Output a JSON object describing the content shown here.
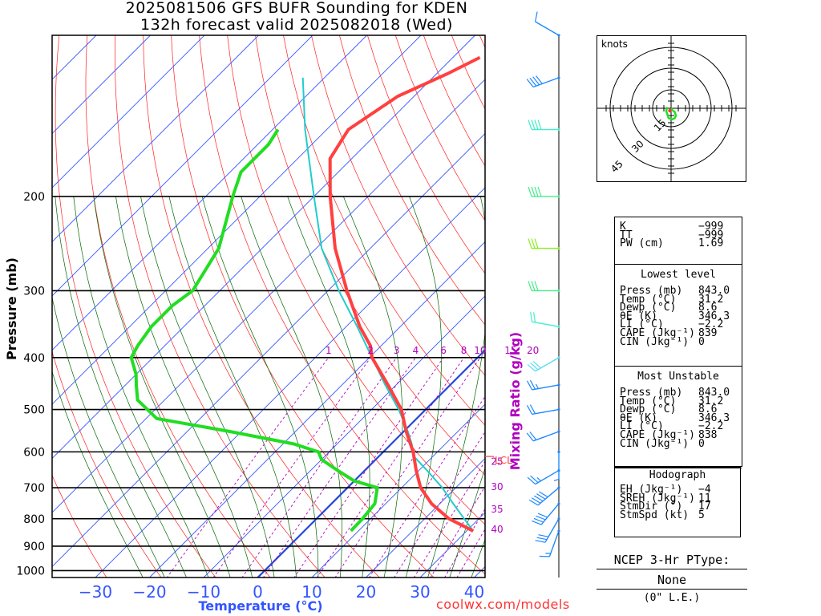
{
  "header": {
    "line1": "2025081506 GFS BUFR Sounding for KDEN",
    "line2": "132h forecast valid 2025082018 (Wed)"
  },
  "chart_data": {
    "type": "line",
    "title": "2025081506 GFS BUFR Sounding for KDEN",
    "subtitle": "132h forecast valid 2025082018 (Wed)",
    "xlabel": "Temperature (°C)",
    "ylabel": "Pressure (mb)",
    "xlim": [
      -38,
      42
    ],
    "ylim": [
      1030,
      100
    ],
    "y_scale": "log",
    "skew": "temperature isotherms skewed 45°",
    "x_ticks": [
      -30,
      -20,
      -10,
      0,
      10,
      20,
      30,
      40
    ],
    "y_ticks": [
      1000,
      900,
      800,
      700,
      600,
      500,
      400,
      300,
      200
    ],
    "mixing_ratio_label": "Mixing Ratio (g/kg)",
    "mixing_ratios": [
      1,
      2,
      3,
      4,
      6,
      8,
      10,
      15,
      20,
      25,
      30,
      35,
      40
    ],
    "lcl_label": "LCL",
    "lcl_pressure": 612,
    "series": [
      {
        "name": "Temperature",
        "color": "#ff4040",
        "p": [
          843,
          800,
          750,
          700,
          650,
          600,
          550,
          500,
          450,
          400,
          380,
          350,
          300,
          250,
          200,
          170,
          150,
          130,
          118,
          110
        ],
        "t": [
          31.2,
          24.5,
          18.5,
          13.5,
          9.5,
          5.5,
          0.5,
          -4.5,
          -11.5,
          -19.5,
          -22,
          -27.5,
          -36.5,
          -46.5,
          -57,
          -64,
          -66,
          -63,
          -58,
          -55
        ]
      },
      {
        "name": "Dewpoint",
        "color": "#22dd22",
        "p": [
          843,
          800,
          750,
          700,
          680,
          650,
          620,
          600,
          580,
          550,
          520,
          480,
          450,
          430,
          400,
          380,
          350,
          320,
          300,
          250,
          200,
          180,
          170,
          160,
          150
        ],
        "t": [
          8.6,
          8.5,
          8.0,
          5.5,
          0,
          -5,
          -10,
          -12,
          -18,
          -32,
          -48,
          -55,
          -58,
          -60,
          -64,
          -65,
          -66,
          -66,
          -65,
          -68,
          -75,
          -78,
          -78,
          -78,
          -79
        ]
      },
      {
        "name": "Parcel",
        "color": "#22cccc",
        "p": [
          843,
          800,
          750,
          700,
          650,
          612,
          580,
          550,
          500,
          450,
          400,
          350,
          300,
          250,
          200,
          150,
          120
        ],
        "t": [
          31.2,
          27.3,
          22.5,
          17.5,
          11.5,
          6.5,
          3.8,
          0.8,
          -5,
          -12,
          -19.5,
          -28,
          -38,
          -49,
          -60,
          -74,
          -84
        ]
      }
    ]
  },
  "hodograph": {
    "units": "knots",
    "rings": [
      "15",
      "30",
      "45"
    ],
    "points": [
      [
        0,
        0
      ],
      [
        1,
        1.5
      ],
      [
        3,
        3
      ],
      [
        4,
        6
      ],
      [
        3,
        8
      ],
      [
        1,
        9
      ],
      [
        -2,
        8
      ],
      [
        -3,
        5
      ],
      [
        -4,
        2
      ],
      [
        -3,
        -1
      ]
    ]
  },
  "winds": {
    "pressures": [
      843,
      800,
      750,
      700,
      650,
      600,
      550,
      500,
      450,
      400,
      350,
      300,
      250,
      200,
      150,
      120,
      100
    ],
    "speeds_kt": [
      15,
      30,
      40,
      50,
      25,
      5,
      20,
      20,
      25,
      30,
      20,
      30,
      30,
      40,
      40,
      40,
      10
    ],
    "dirs_deg": [
      200,
      210,
      220,
      230,
      240,
      180,
      250,
      260,
      260,
      240,
      280,
      270,
      270,
      270,
      270,
      250,
      300
    ],
    "colors": [
      "#1e88ff",
      "#1e88ff",
      "#1e88ff",
      "#1e88ff",
      "#1e88ff",
      "#1e88ff",
      "#1e88ff",
      "#1e88ff",
      "#1e88ff",
      "#55ddee",
      "#44eecc",
      "#44ee88",
      "#88ee22",
      "#44ee88",
      "#44eecc",
      "#1e88ff",
      "#1e88ff"
    ]
  },
  "indices": {
    "k": {
      "label": "K",
      "value": "−999"
    },
    "tt": {
      "label": "TT",
      "value": "−999"
    },
    "pw": {
      "label": "PW (cm)",
      "value": "1.69"
    }
  },
  "lowest": {
    "title": "Lowest level",
    "rows": [
      {
        "label": "Press (mb)",
        "value": "843.0"
      },
      {
        "label": "Temp (°C)",
        "value": "31.2"
      },
      {
        "label": "Dewp (°C)",
        "value": "8.6"
      },
      {
        "label": "θE (K)",
        "value": "346.3"
      },
      {
        "label": "LI (°C)",
        "value": "−2.2"
      },
      {
        "label": "CAPE (Jkg⁻¹)",
        "value": "839"
      },
      {
        "label": "CIN (Jkg⁻¹)",
        "value": "0"
      }
    ]
  },
  "unstable": {
    "title": "Most Unstable",
    "rows": [
      {
        "label": "Press (mb)",
        "value": "843.0"
      },
      {
        "label": "Temp (°C)",
        "value": "31.2"
      },
      {
        "label": "Dewp (°C)",
        "value": "8.6"
      },
      {
        "label": "θE (K)",
        "value": "346.3"
      },
      {
        "label": "LI (°C)",
        "value": "−2.2"
      },
      {
        "label": "CAPE (Jkg⁻¹)",
        "value": "838"
      },
      {
        "label": "CIN (Jkg⁻¹)",
        "value": "0"
      }
    ]
  },
  "hodo_params": {
    "title": "Hodograph",
    "rows": [
      {
        "label": "EH (Jkg⁻¹)",
        "value": "−4"
      },
      {
        "label": "SREH (Jkg⁻¹)",
        "value": "11"
      },
      {
        "label": "StmDir (°)",
        "value": "17"
      },
      {
        "label": "StmSpd (kt)",
        "value": "5"
      }
    ]
  },
  "ptype": {
    "title": "NCEP 3-Hr PType:",
    "value": "None",
    "note": "(0\" L.E.)"
  },
  "footer": {
    "credit": "coolwx.com/models"
  }
}
